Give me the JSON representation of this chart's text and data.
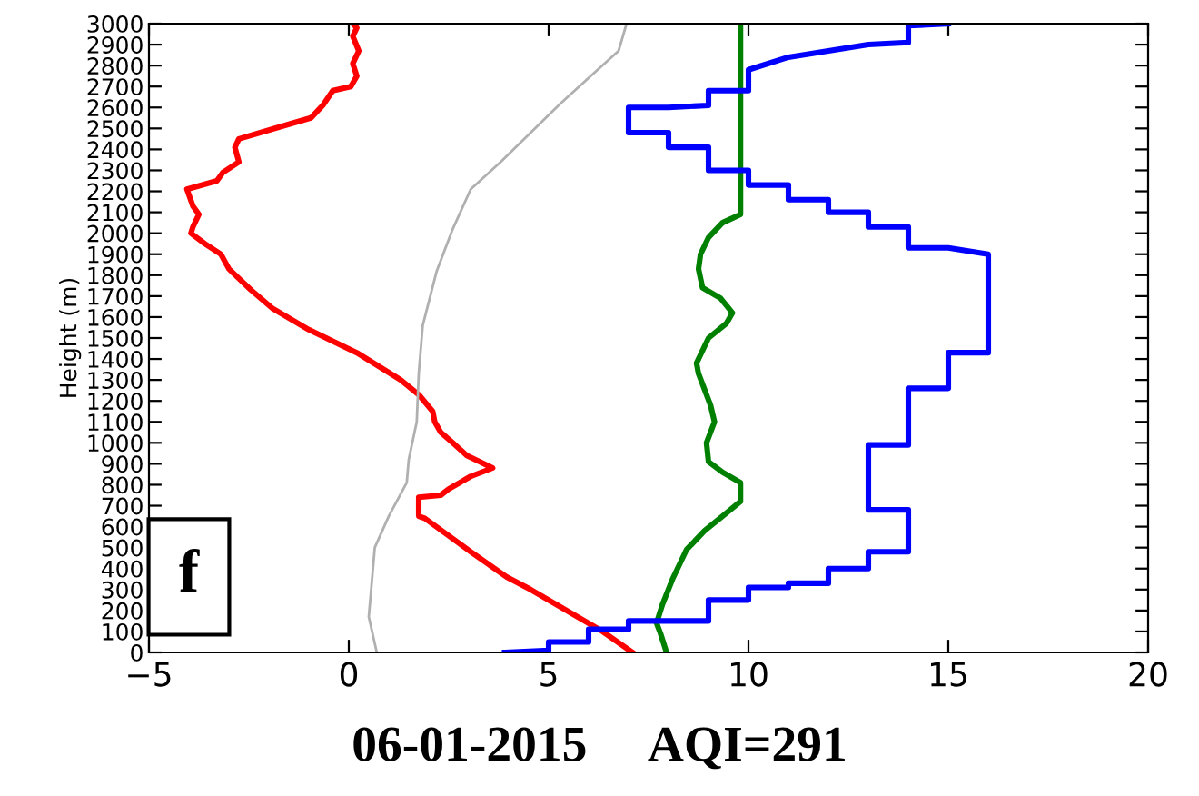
{
  "chart_data": {
    "type": "line",
    "ylabel": "Height (m)",
    "xlim": [
      -5,
      20
    ],
    "ylim": [
      0,
      3000
    ],
    "xticks": [
      {
        "value": -5,
        "label": "−5"
      },
      0,
      5,
      10,
      15,
      20
    ],
    "yticks": [
      0,
      100,
      200,
      300,
      400,
      500,
      600,
      700,
      800,
      900,
      1000,
      1100,
      1200,
      1300,
      1400,
      1500,
      1600,
      1700,
      1800,
      1900,
      2000,
      2100,
      2200,
      2300,
      2400,
      2500,
      2600,
      2700,
      2800,
      2900,
      3000
    ],
    "annotations": [
      "f",
      "06-01-2015     AQI=291"
    ],
    "series": [
      {
        "color": "#ff0000",
        "x": [
          7.1,
          6.35,
          5.9,
          4.55,
          3.95,
          3.05,
          1.9,
          1.75,
          1.75,
          2.3,
          2.5,
          3.05,
          3.6,
          2.95,
          2.6,
          2.3,
          2.15,
          2.1,
          1.75,
          1.3,
          0.2,
          -1.0,
          -1.9,
          -2.45,
          -3.0,
          -3.2,
          -3.6,
          -3.95,
          -3.9,
          -3.75,
          -3.9,
          -4.05,
          -3.3,
          -3.15,
          -2.75,
          -2.85,
          -2.75,
          -1.5,
          -0.95,
          -0.65,
          -0.4,
          0.05,
          0.2,
          0.1,
          0.25,
          0.1,
          0.2,
          0.1
        ],
        "values": [
          0,
          100,
          150,
          300,
          360,
          480,
          640,
          650,
          740,
          750,
          780,
          840,
          880,
          940,
          1000,
          1050,
          1100,
          1150,
          1230,
          1300,
          1430,
          1540,
          1640,
          1730,
          1830,
          1900,
          1950,
          2000,
          2030,
          2090,
          2130,
          2210,
          2250,
          2290,
          2340,
          2410,
          2450,
          2520,
          2550,
          2610,
          2680,
          2700,
          2750,
          2810,
          2870,
          2940,
          2980,
          3000
        ]
      },
      {
        "color": "#b0b0b0",
        "x": [
          0.7,
          0.5,
          0.65,
          1.0,
          1.45,
          1.5,
          1.7,
          1.75,
          1.85,
          2.2,
          2.6,
          3.05,
          3.8,
          4.55,
          5.3,
          6.05,
          6.75,
          6.95
        ],
        "values": [
          0,
          170,
          500,
          650,
          810,
          920,
          1100,
          1330,
          1560,
          1820,
          2020,
          2210,
          2340,
          2480,
          2620,
          2750,
          2870,
          3000
        ]
      },
      {
        "color": "#008000",
        "x": [
          7.95,
          7.8,
          7.7,
          7.85,
          8.1,
          8.45,
          8.9,
          9.35,
          9.8,
          9.8,
          9.35,
          9.0,
          8.95,
          9.15,
          9.05,
          8.75,
          8.7,
          9.0,
          9.45,
          9.6,
          9.3,
          8.85,
          8.75,
          8.8,
          9.0,
          9.35,
          9.8,
          9.8
        ],
        "values": [
          0,
          90,
          140,
          230,
          350,
          490,
          580,
          650,
          720,
          810,
          860,
          910,
          1000,
          1100,
          1180,
          1330,
          1380,
          1500,
          1570,
          1620,
          1690,
          1740,
          1830,
          1900,
          1980,
          2050,
          2090,
          3000
        ]
      },
      {
        "color": "#0000ff",
        "x": [
          3.9,
          5,
          5,
          6,
          6,
          7,
          7,
          9,
          9,
          10,
          10,
          11,
          11,
          12,
          12,
          13,
          13,
          14,
          14,
          13,
          13,
          14,
          14,
          15,
          15,
          16,
          16,
          15,
          14,
          14,
          13,
          13,
          12,
          12,
          11,
          11,
          10,
          10,
          9,
          9,
          8,
          8,
          7,
          7,
          8,
          9,
          9,
          10,
          10,
          11,
          12,
          13,
          14,
          14,
          15
        ],
        "values": [
          0,
          10,
          50,
          50,
          110,
          110,
          150,
          150,
          250,
          250,
          310,
          310,
          330,
          330,
          400,
          400,
          480,
          480,
          680,
          680,
          990,
          990,
          1260,
          1260,
          1430,
          1430,
          1900,
          1930,
          1930,
          2030,
          2030,
          2100,
          2100,
          2160,
          2160,
          2230,
          2230,
          2300,
          2300,
          2410,
          2410,
          2480,
          2480,
          2600,
          2600,
          2610,
          2680,
          2680,
          2780,
          2840,
          2870,
          2900,
          2910,
          2990,
          3000
        ]
      }
    ]
  }
}
